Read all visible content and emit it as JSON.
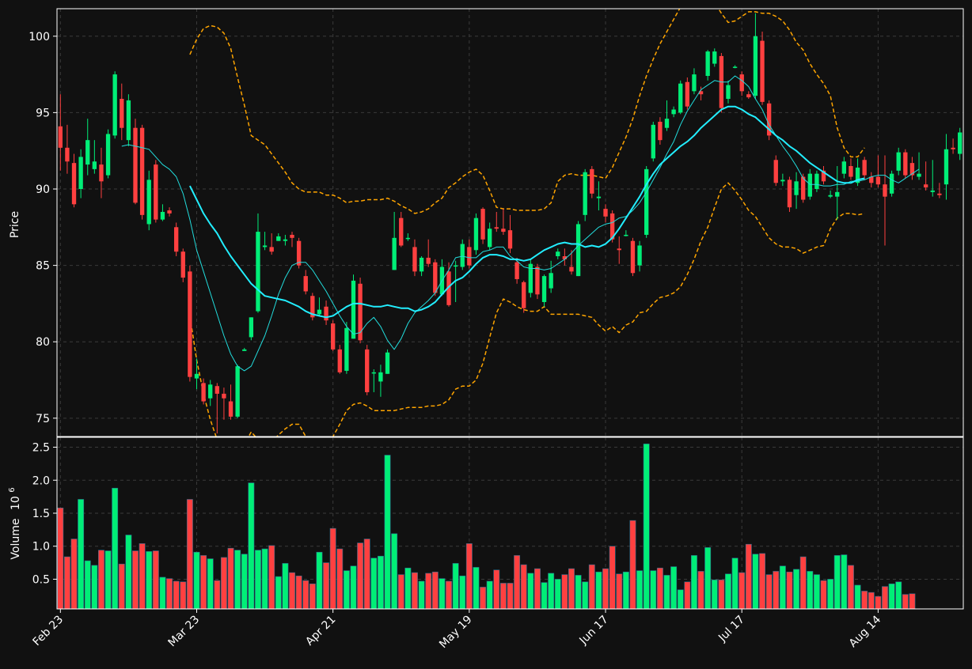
{
  "chart_data": {
    "type": "candlestick",
    "colors": {
      "background": "#111111",
      "grid": "#3a3a3a",
      "axes": "#ffffff",
      "up": "#00ee77",
      "down": "#ff4040",
      "ma_fast": "#22dddd",
      "ma_slow": "#22eeff",
      "bollinger": "#ffa500"
    },
    "grid": true,
    "price_panel": {
      "ylabel": "Price",
      "ylim": [
        73.8,
        101.8
      ],
      "yticks": [
        "75",
        "80",
        "85",
        "90",
        "95",
        "100"
      ]
    },
    "volume_panel": {
      "ylabel": "Volume",
      "exponent_label": "10",
      "exponent_power": "6",
      "ylim": [
        0.05,
        2.65
      ],
      "yticks": [
        "0.5",
        "1.0",
        "1.5",
        "2.0",
        "2.5"
      ]
    },
    "xticks": [
      {
        "index": 0,
        "label": "Feb 23"
      },
      {
        "index": 20,
        "label": "Mar 23"
      },
      {
        "index": 40,
        "label": "Apr 21"
      },
      {
        "index": 60,
        "label": "May 19"
      },
      {
        "index": 80,
        "label": "Jun 17"
      },
      {
        "index": 100,
        "label": "Jul 17"
      },
      {
        "index": 120,
        "label": "Aug 14"
      }
    ],
    "candles": [
      [
        94.1,
        92.7,
        91.2,
        96.2
      ],
      [
        92.7,
        91.8,
        91.0,
        94.2
      ],
      [
        91.7,
        89.0,
        88.8,
        92.3
      ],
      [
        90.0,
        92.1,
        89.4,
        92.6
      ],
      [
        91.6,
        93.2,
        90.9,
        94.6
      ],
      [
        91.3,
        91.8,
        91.0,
        93.2
      ],
      [
        91.6,
        90.5,
        89.4,
        92.7
      ],
      [
        90.9,
        93.6,
        90.7,
        93.9
      ],
      [
        93.5,
        97.5,
        93.3,
        97.7
      ],
      [
        95.9,
        94.0,
        93.2,
        96.9
      ],
      [
        93.2,
        95.8,
        92.8,
        96.2
      ],
      [
        94.0,
        89.1,
        89.0,
        94.6
      ],
      [
        94.0,
        88.3,
        88.0,
        94.2
      ],
      [
        87.7,
        90.6,
        87.3,
        91.2
      ],
      [
        91.6,
        88.0,
        87.8,
        91.9
      ],
      [
        88.0,
        88.5,
        87.9,
        89.0
      ],
      [
        88.6,
        88.4,
        88.2,
        88.8
      ],
      [
        87.5,
        85.9,
        85.6,
        87.8
      ],
      [
        85.9,
        84.2,
        83.9,
        86.1
      ],
      [
        84.6,
        77.7,
        77.4,
        85.0
      ],
      [
        77.6,
        77.9,
        76.9,
        78.9
      ],
      [
        77.3,
        76.1,
        75.9,
        77.6
      ],
      [
        76.3,
        77.2,
        75.8,
        77.5
      ],
      [
        77.1,
        76.6,
        74.0,
        77.3
      ],
      [
        76.6,
        76.3,
        74.9,
        77.0
      ],
      [
        76.1,
        75.1,
        74.9,
        77.2
      ],
      [
        75.1,
        78.4,
        75.0,
        78.5
      ],
      [
        79.4,
        79.5,
        79.4,
        79.6
      ],
      [
        80.3,
        81.6,
        80.1,
        81.6
      ],
      [
        82.0,
        87.2,
        81.9,
        88.4
      ],
      [
        86.2,
        86.3,
        86.0,
        87.2
      ],
      [
        86.2,
        85.9,
        85.7,
        87.1
      ],
      [
        86.6,
        86.9,
        86.6,
        87.1
      ],
      [
        86.6,
        86.7,
        86.3,
        87.0
      ],
      [
        87.0,
        86.8,
        86.2,
        87.2
      ],
      [
        86.6,
        85.0,
        84.8,
        86.8
      ],
      [
        84.3,
        83.3,
        83.1,
        84.7
      ],
      [
        83.0,
        81.6,
        81.4,
        83.2
      ],
      [
        81.8,
        82.1,
        81.7,
        82.9
      ],
      [
        82.3,
        81.4,
        81.1,
        82.7
      ],
      [
        81.2,
        79.5,
        79.4,
        81.4
      ],
      [
        79.5,
        78.0,
        77.9,
        79.8
      ],
      [
        78.1,
        80.9,
        77.9,
        81.3
      ],
      [
        80.2,
        84.0,
        80.2,
        84.4
      ],
      [
        83.8,
        80.1,
        79.9,
        84.2
      ],
      [
        79.5,
        76.7,
        76.5,
        79.8
      ],
      [
        78.0,
        78.0,
        76.7,
        78.2
      ],
      [
        77.4,
        78.0,
        76.4,
        78.5
      ],
      [
        77.9,
        79.3,
        77.9,
        79.5
      ],
      [
        84.7,
        86.8,
        84.7,
        88.5
      ],
      [
        88.1,
        86.3,
        86.2,
        88.5
      ],
      [
        86.8,
        86.8,
        86.6,
        87.1
      ],
      [
        86.2,
        84.6,
        84.3,
        86.7
      ],
      [
        84.6,
        85.5,
        84.3,
        85.6
      ],
      [
        85.5,
        85.1,
        84.9,
        86.7
      ],
      [
        85.2,
        83.2,
        83.0,
        85.4
      ],
      [
        83.1,
        84.9,
        83.0,
        85.4
      ],
      [
        84.6,
        82.4,
        82.3,
        85.2
      ],
      [
        85.0,
        85.0,
        82.6,
        85.3
      ],
      [
        84.9,
        86.4,
        84.7,
        86.7
      ],
      [
        86.2,
        85.0,
        84.8,
        86.7
      ],
      [
        86.0,
        88.1,
        85.7,
        88.4
      ],
      [
        88.7,
        86.7,
        86.4,
        88.8
      ],
      [
        86.2,
        87.4,
        86.0,
        87.8
      ],
      [
        87.5,
        87.4,
        87.2,
        88.5
      ],
      [
        87.4,
        87.2,
        87.0,
        88.7
      ],
      [
        87.3,
        86.1,
        85.8,
        88.3
      ],
      [
        85.2,
        84.1,
        83.8,
        85.5
      ],
      [
        83.9,
        82.2,
        81.9,
        84.0
      ],
      [
        83.2,
        85.1,
        82.9,
        85.4
      ],
      [
        84.9,
        83.1,
        82.8,
        85.1
      ],
      [
        82.6,
        84.3,
        82.3,
        84.4
      ],
      [
        83.5,
        84.5,
        83.2,
        85.3
      ],
      [
        85.6,
        85.9,
        85.4,
        86.1
      ],
      [
        85.6,
        85.4,
        85.0,
        86.1
      ],
      [
        84.9,
        84.6,
        84.4,
        86.0
      ],
      [
        84.3,
        87.7,
        84.3,
        87.9
      ],
      [
        88.3,
        91.1,
        87.9,
        91.3
      ],
      [
        91.3,
        89.7,
        89.4,
        91.5
      ],
      [
        89.4,
        89.5,
        88.6,
        90.5
      ],
      [
        88.7,
        88.2,
        87.8,
        89.0
      ],
      [
        88.4,
        86.7,
        86.5,
        88.6
      ],
      [
        86.1,
        86.0,
        85.1,
        86.9
      ],
      [
        87.0,
        87.0,
        86.9,
        87.3
      ],
      [
        86.6,
        84.5,
        84.3,
        86.8
      ],
      [
        85.0,
        86.3,
        84.6,
        86.6
      ],
      [
        87.0,
        91.3,
        86.8,
        91.5
      ],
      [
        92.0,
        94.2,
        91.8,
        94.4
      ],
      [
        94.4,
        93.2,
        92.9,
        94.7
      ],
      [
        94.0,
        94.6,
        93.8,
        95.8
      ],
      [
        94.9,
        95.2,
        94.7,
        95.4
      ],
      [
        95.0,
        96.9,
        94.9,
        97.1
      ],
      [
        97.0,
        95.4,
        95.2,
        97.3
      ],
      [
        96.4,
        97.5,
        96.2,
        97.9
      ],
      [
        96.4,
        96.2,
        95.8,
        96.7
      ],
      [
        97.4,
        99.0,
        97.1,
        99.1
      ],
      [
        98.2,
        99.0,
        98.0,
        99.2
      ],
      [
        98.7,
        95.3,
        95.0,
        98.9
      ],
      [
        95.9,
        96.8,
        95.6,
        97.1
      ],
      [
        98.0,
        98.0,
        97.9,
        98.1
      ],
      [
        97.5,
        96.4,
        96.1,
        97.7
      ],
      [
        96.2,
        96.0,
        95.9,
        96.4
      ],
      [
        96.1,
        100.0,
        95.9,
        101.5
      ],
      [
        99.7,
        95.7,
        95.5,
        100.3
      ],
      [
        95.6,
        93.5,
        93.2,
        95.8
      ],
      [
        91.9,
        90.4,
        90.2,
        92.2
      ],
      [
        90.5,
        90.6,
        90.2,
        91.0
      ],
      [
        90.6,
        88.8,
        88.5,
        90.8
      ],
      [
        89.6,
        90.5,
        88.7,
        91.1
      ],
      [
        90.8,
        89.3,
        89.1,
        91.0
      ],
      [
        89.5,
        91.0,
        89.3,
        91.3
      ],
      [
        90.0,
        91.0,
        89.8,
        91.2
      ],
      [
        91.2,
        90.5,
        90.3,
        91.5
      ],
      [
        89.5,
        89.6,
        89.4,
        89.9
      ],
      [
        89.5,
        89.8,
        88.0,
        91.5
      ],
      [
        91.0,
        91.8,
        90.7,
        92.1
      ],
      [
        91.5,
        90.8,
        90.6,
        92.0
      ],
      [
        90.4,
        91.4,
        90.2,
        92.0
      ],
      [
        91.9,
        90.9,
        90.6,
        92.1
      ],
      [
        90.8,
        90.4,
        90.1,
        91.1
      ],
      [
        90.8,
        90.3,
        90.1,
        92.2
      ],
      [
        90.3,
        89.5,
        86.3,
        92.2
      ],
      [
        89.7,
        91.0,
        89.5,
        91.2
      ],
      [
        91.2,
        92.4,
        90.9,
        92.7
      ],
      [
        92.4,
        90.9,
        90.7,
        92.6
      ],
      [
        91.7,
        90.9,
        90.6,
        92.1
      ],
      [
        90.8,
        91.0,
        90.6,
        92.4
      ],
      [
        90.3,
        90.1,
        89.9,
        91.8
      ],
      [
        89.8,
        89.9,
        89.5,
        91.9
      ],
      [
        89.7,
        89.6,
        89.4,
        90.4
      ],
      [
        90.3,
        92.6,
        89.3,
        93.6
      ],
      [
        92.7,
        92.6,
        92.3,
        93.3
      ],
      [
        92.3,
        93.7,
        91.9,
        94.0
      ]
    ],
    "volume": [
      1.58,
      0.84,
      1.11,
      1.71,
      0.78,
      0.71,
      0.94,
      0.93,
      1.88,
      0.73,
      1.17,
      0.93,
      1.04,
      0.92,
      0.93,
      0.53,
      0.51,
      0.47,
      0.46,
      1.71,
      0.91,
      0.86,
      0.81,
      0.48,
      0.83,
      0.97,
      0.94,
      0.88,
      1.96,
      0.94,
      0.96,
      1.01,
      0.54,
      0.74,
      0.6,
      0.55,
      0.48,
      0.43,
      0.91,
      0.75,
      1.27,
      0.96,
      0.63,
      0.7,
      1.05,
      1.11,
      0.82,
      0.85,
      2.38,
      1.19,
      0.57,
      0.67,
      0.6,
      0.47,
      0.59,
      0.61,
      0.51,
      0.47,
      0.74,
      0.55,
      1.04,
      0.68,
      0.38,
      0.47,
      0.64,
      0.44,
      0.44,
      0.86,
      0.72,
      0.59,
      0.66,
      0.45,
      0.59,
      0.5,
      0.57,
      0.66,
      0.56,
      0.46,
      0.72,
      0.61,
      0.66,
      1.0,
      0.58,
      0.61,
      1.39,
      0.63,
      2.55,
      0.63,
      0.67,
      0.56,
      0.69,
      0.34,
      0.46,
      0.86,
      0.62,
      0.98,
      0.49,
      0.49,
      0.58,
      0.82,
      0.6,
      1.03,
      0.88,
      0.89,
      0.57,
      0.62,
      0.7,
      0.61,
      0.65,
      0.84,
      0.62,
      0.57,
      0.48,
      0.5,
      0.86,
      0.87,
      0.71,
      0.41,
      0.32,
      0.3,
      0.24,
      0.39,
      0.43,
      0.46,
      0.27,
      0.28
    ],
    "ma_fast": {
      "start": 9,
      "values": [
        92.8,
        92.9,
        92.8,
        92.7,
        92.6,
        92.1,
        91.6,
        91.3,
        90.8,
        89.7,
        88.0,
        86.0,
        84.6,
        83.2,
        81.8,
        80.4,
        79.2,
        78.4,
        78.1,
        78.4,
        79.4,
        80.4,
        81.7,
        83.1,
        84.2,
        85.0,
        85.2,
        85.2,
        84.7,
        84.0,
        83.3,
        82.5,
        81.7,
        81.0,
        80.5,
        80.6,
        81.2,
        81.6,
        81.0,
        80.1,
        79.5,
        80.2,
        81.2,
        81.9,
        82.3,
        82.7,
        83.2,
        84.0,
        84.7,
        85.5,
        85.6,
        85.5,
        85.5,
        85.9,
        86.0,
        86.2,
        86.2,
        85.6,
        85.3,
        84.9,
        84.8,
        84.8,
        84.7,
        84.8,
        85.1,
        85.4,
        85.8,
        86.3,
        86.7,
        87.1,
        87.5,
        87.7,
        87.8,
        88.1,
        88.2,
        88.6,
        89.1,
        89.8,
        90.6,
        91.4,
        92.3,
        93.1,
        94.2,
        95.1,
        95.8,
        96.5,
        96.8,
        97.1,
        97.0,
        97.0,
        97.4,
        97.1,
        96.7,
        95.9,
        95.2,
        94.2,
        93.5,
        92.8,
        92.2,
        91.5,
        90.7,
        90.3,
        90.3,
        90.2,
        90.2,
        90.3,
        90.3,
        90.5,
        90.5,
        90.6,
        90.8,
        90.9,
        90.9,
        90.6,
        90.4,
        90.7,
        91.0,
        91.3
      ]
    },
    "ma_slow": {
      "start": 19,
      "values": [
        90.2,
        89.3,
        88.4,
        87.7,
        87.1,
        86.3,
        85.6,
        85.0,
        84.4,
        83.8,
        83.4,
        83.0,
        82.9,
        82.8,
        82.7,
        82.5,
        82.3,
        82.0,
        81.8,
        81.7,
        81.6,
        81.7,
        82.0,
        82.3,
        82.5,
        82.5,
        82.4,
        82.3,
        82.3,
        82.4,
        82.3,
        82.2,
        82.2,
        82.0,
        82.1,
        82.3,
        82.6,
        83.1,
        83.6,
        84.0,
        84.2,
        84.6,
        85.1,
        85.5,
        85.7,
        85.7,
        85.6,
        85.4,
        85.4,
        85.3,
        85.4,
        85.7,
        86.0,
        86.2,
        86.4,
        86.5,
        86.4,
        86.4,
        86.2,
        86.3,
        86.2,
        86.4,
        86.8,
        87.4,
        88.1,
        88.8,
        89.5,
        90.3,
        91.0,
        91.6,
        92.0,
        92.4,
        92.8,
        93.1,
        93.5,
        94.0,
        94.4,
        94.8,
        95.2,
        95.4,
        95.4,
        95.2,
        94.9,
        94.7,
        94.3,
        93.9,
        93.5,
        93.2,
        92.8,
        92.5,
        92.1,
        91.7,
        91.4,
        91.1,
        90.8,
        90.5,
        90.4,
        90.4,
        90.6,
        90.7
      ]
    },
    "bollinger_upper": {
      "start": 19,
      "values": [
        98.8,
        99.8,
        100.5,
        100.7,
        100.6,
        100.2,
        99.2,
        97.3,
        95.5,
        93.5,
        93.2,
        92.9,
        92.3,
        91.7,
        91.1,
        90.4,
        90.0,
        89.8,
        89.8,
        89.8,
        89.6,
        89.6,
        89.4,
        89.1,
        89.2,
        89.2,
        89.3,
        89.3,
        89.3,
        89.4,
        89.2,
        88.9,
        88.7,
        88.4,
        88.5,
        88.7,
        89.1,
        89.4,
        90.1,
        90.4,
        90.8,
        91.1,
        91.3,
        90.9,
        89.9,
        88.8,
        88.7,
        88.7,
        88.6,
        88.6,
        88.6,
        88.6,
        88.7,
        89.1,
        90.5,
        90.9,
        91.0,
        90.9,
        90.9,
        90.9,
        90.8,
        90.7,
        91.4,
        92.4,
        93.4,
        94.6,
        96.1,
        97.4,
        98.5,
        99.5,
        100.3,
        101.1,
        101.9,
        101.9,
        102.3,
        102.5,
        102.4,
        102.2,
        101.5,
        100.9,
        101.0,
        101.3,
        101.6,
        101.6,
        101.5,
        101.5,
        101.3,
        101.0,
        100.4,
        99.6,
        99.1,
        98.2,
        97.5,
        96.9,
        96.1,
        94.0,
        92.7,
        92.1,
        92.1,
        92.7
      ]
    },
    "bollinger_lower": {
      "start": 19,
      "values": [
        81.7,
        78.8,
        76.6,
        74.9,
        73.6,
        72.4,
        72.0,
        72.6,
        73.3,
        74.1,
        73.6,
        73.1,
        73.5,
        73.9,
        74.3,
        74.6,
        74.6,
        73.8,
        73.7,
        73.6,
        73.6,
        73.8,
        74.6,
        75.5,
        75.9,
        76.0,
        75.8,
        75.5,
        75.5,
        75.5,
        75.5,
        75.6,
        75.7,
        75.7,
        75.7,
        75.8,
        75.8,
        75.9,
        76.2,
        76.9,
        77.1,
        77.1,
        77.5,
        78.6,
        80.3,
        81.9,
        82.8,
        82.6,
        82.3,
        82.1,
        82.0,
        82.0,
        82.3,
        81.8,
        81.8,
        81.8,
        81.8,
        81.8,
        81.7,
        81.6,
        81.1,
        80.7,
        81.0,
        80.6,
        81.1,
        81.3,
        81.9,
        82.0,
        82.5,
        82.9,
        83.0,
        83.2,
        83.6,
        84.4,
        85.4,
        86.6,
        87.5,
        88.8,
        90.0,
        90.4,
        89.9,
        89.3,
        88.6,
        88.2,
        87.5,
        86.8,
        86.4,
        86.2,
        86.2,
        86.1,
        85.8,
        86.0,
        86.2,
        86.3,
        87.4,
        88.1,
        88.4,
        88.4,
        88.3,
        88.4
      ]
    }
  }
}
